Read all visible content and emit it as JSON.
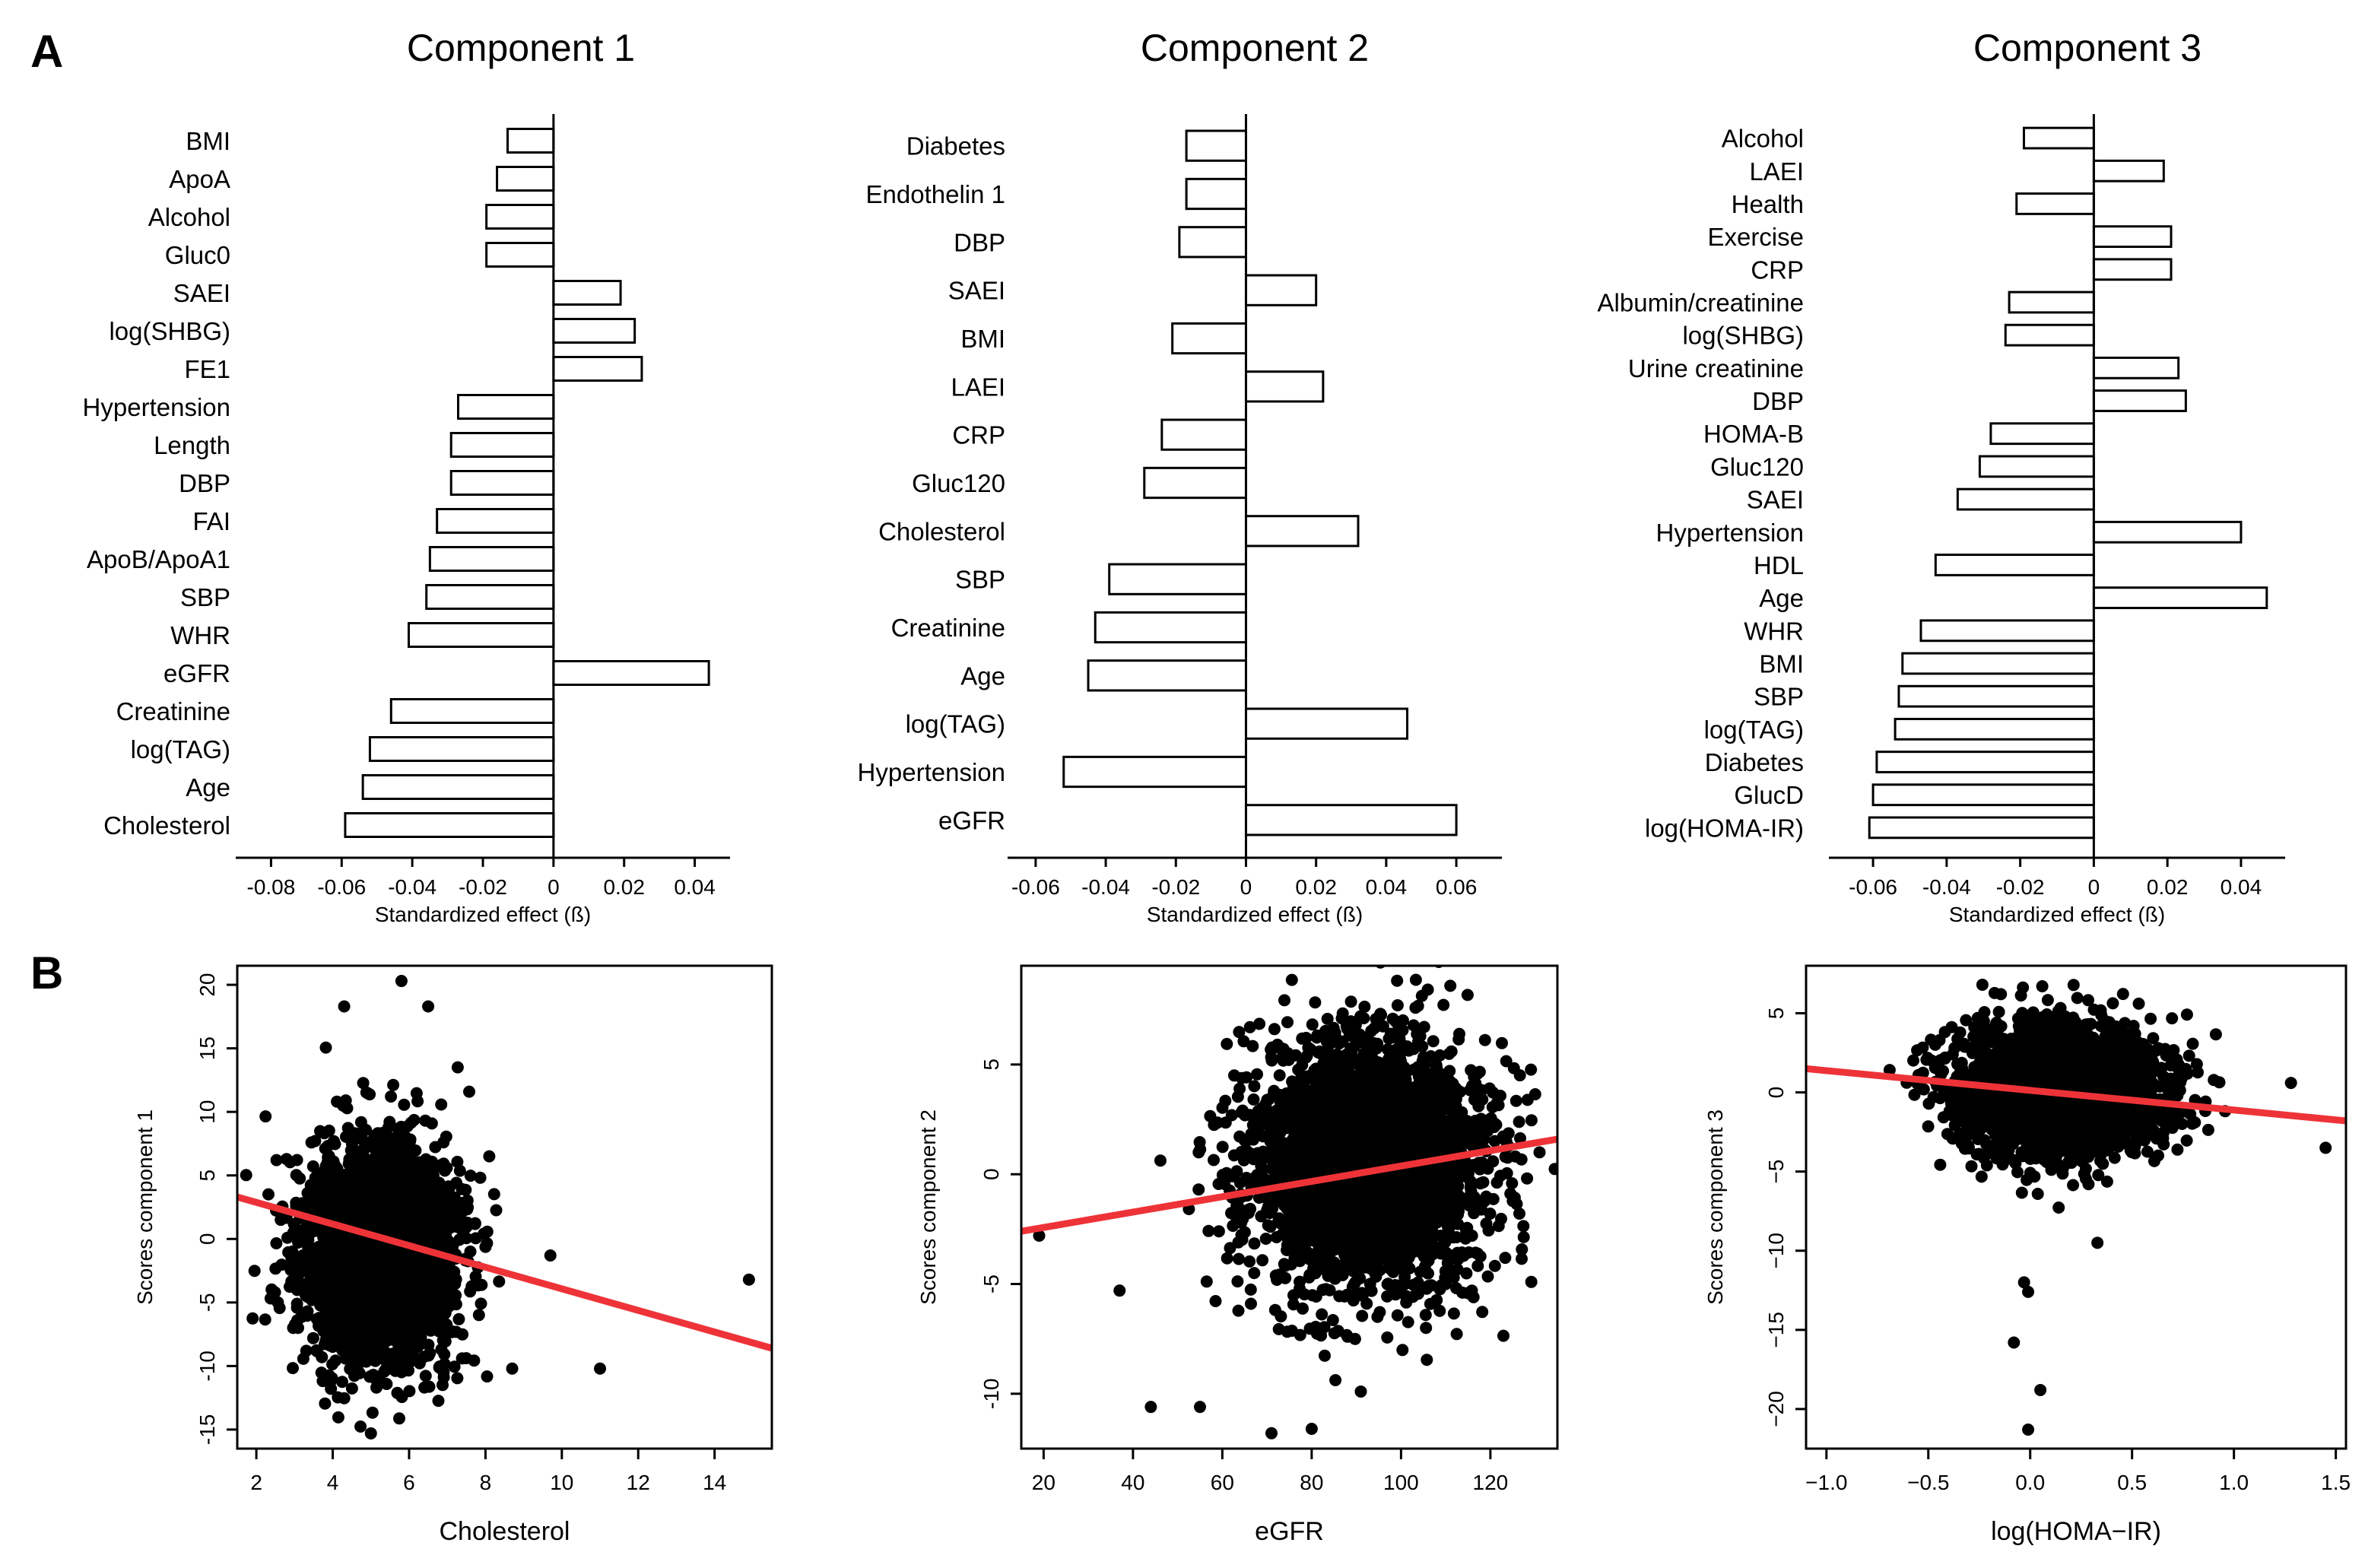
{
  "panels": {
    "a": "A",
    "b": "B"
  },
  "colors": {
    "bar_fill": "#ffffff",
    "bar_stroke": "#000000",
    "points": "#000000",
    "fit_line": "#ee3338"
  },
  "chart_data": [
    {
      "type": "bar",
      "orientation": "horizontal",
      "title": "Component 1",
      "xlabel": "Standardized effect (ß)",
      "xlim": [
        -0.09,
        0.05
      ],
      "xticks": [
        -0.08,
        -0.06,
        -0.04,
        -0.02,
        0,
        0.02,
        0.04
      ],
      "tick_labels": [
        "-0.08",
        "-0.06",
        "-0.04",
        "-0.02",
        "0",
        "0.02",
        "0.04"
      ],
      "categories": [
        "BMI",
        "ApoA",
        "Alcohol",
        "Gluc0",
        "SAEI",
        "log(SHBG)",
        "FE1",
        "Hypertension",
        "Length",
        "DBP",
        "FAI",
        "ApoB/ApoA1",
        "SBP",
        "WHR",
        "eGFR",
        "Creatinine",
        "log(TAG)",
        "Age",
        "Cholesterol"
      ],
      "values": [
        -0.013,
        -0.016,
        -0.019,
        -0.019,
        0.019,
        0.023,
        0.025,
        -0.027,
        -0.029,
        -0.029,
        -0.033,
        -0.035,
        -0.036,
        -0.041,
        0.044,
        -0.046,
        -0.052,
        -0.054,
        -0.059
      ]
    },
    {
      "type": "bar",
      "orientation": "horizontal",
      "title": "Component 2",
      "xlabel": "Standardized effect (ß)",
      "xlim": [
        -0.068,
        0.073
      ],
      "xticks": [
        -0.06,
        -0.04,
        -0.02,
        0,
        0.02,
        0.04,
        0.06
      ],
      "tick_labels": [
        "-0.06",
        "-0.04",
        "-0.02",
        "0",
        "0.02",
        "0.04",
        "0.06"
      ],
      "categories": [
        "Diabetes",
        "Endothelin 1",
        "DBP",
        "SAEI",
        "BMI",
        "LAEI",
        "CRP",
        "Gluc120",
        "Cholesterol",
        "SBP",
        "Creatinine",
        "Age",
        "log(TAG)",
        "Hypertension",
        "eGFR"
      ],
      "values": [
        -0.017,
        -0.017,
        -0.019,
        0.02,
        -0.021,
        0.022,
        -0.024,
        -0.029,
        0.032,
        -0.039,
        -0.043,
        -0.045,
        0.046,
        -0.052,
        0.06
      ]
    },
    {
      "type": "bar",
      "orientation": "horizontal",
      "title": "Component 3",
      "xlabel": "Standardized effect (ß)",
      "xlim": [
        -0.072,
        0.052
      ],
      "xticks": [
        -0.06,
        -0.04,
        -0.02,
        0,
        0.02,
        0.04
      ],
      "tick_labels": [
        "-0.06",
        "-0.04",
        "-0.02",
        "0",
        "0.02",
        "0.04"
      ],
      "categories": [
        "Alcohol",
        "LAEI",
        "Health",
        "Exercise",
        "CRP",
        "Albumin/creatinine",
        "log(SHBG)",
        "Urine creatinine",
        "DBP",
        "HOMA-B",
        "Gluc120",
        "SAEI",
        "Hypertension",
        "HDL",
        "Age",
        "WHR",
        "BMI",
        "SBP",
        "log(TAG)",
        "Diabetes",
        "GlucD",
        "log(HOMA-IR)"
      ],
      "values": [
        -0.019,
        0.019,
        -0.021,
        0.021,
        0.021,
        -0.023,
        -0.024,
        0.023,
        0.025,
        -0.028,
        -0.031,
        -0.037,
        0.04,
        -0.043,
        0.047,
        -0.047,
        -0.052,
        -0.053,
        -0.054,
        -0.059,
        -0.06,
        -0.061
      ]
    },
    {
      "type": "scatter",
      "xlabel": "Cholesterol",
      "ylabel": "Scores component 1",
      "xlim": [
        1.5,
        15.5
      ],
      "ylim": [
        -16.5,
        21.5
      ],
      "xticks": [
        2,
        4,
        6,
        8,
        10,
        12,
        14
      ],
      "yticks": [
        -15,
        -10,
        -5,
        0,
        5,
        10,
        15,
        20
      ],
      "cluster": {
        "x_center": 5.2,
        "x_sd": 1.0,
        "y_center": -1.0,
        "y_sd": 4.2,
        "n": 3000
      },
      "outliers": [
        [
          5.8,
          20.3
        ],
        [
          4.3,
          18.3
        ],
        [
          6.5,
          18.3
        ],
        [
          11.0,
          -10.2
        ],
        [
          14.9,
          -3.2
        ],
        [
          5.0,
          -15.3
        ],
        [
          9.7,
          -1.3
        ],
        [
          8.7,
          -10.2
        ]
      ],
      "fit_line": {
        "x": [
          1.5,
          15.5
        ],
        "y": [
          3.3,
          -8.6
        ]
      }
    },
    {
      "type": "scatter",
      "xlabel": "eGFR",
      "ylabel": "Scores component 2",
      "xlim": [
        15,
        135
      ],
      "ylim": [
        -12.5,
        9.5
      ],
      "xticks": [
        20,
        40,
        60,
        80,
        100,
        120
      ],
      "yticks": [
        -10,
        -5,
        0,
        5
      ],
      "cluster": {
        "x_center": 92,
        "x_sd": 13,
        "y_center": 0.5,
        "y_sd": 2.8,
        "n": 3000
      },
      "outliers": [
        [
          19,
          -2.8
        ],
        [
          44,
          -10.6
        ],
        [
          55,
          -10.6
        ],
        [
          71,
          -11.8
        ],
        [
          80,
          -11.6
        ],
        [
          37,
          -5.3
        ],
        [
          91,
          -9.9
        ],
        [
          131,
          1.0
        ]
      ],
      "fit_line": {
        "x": [
          15,
          135
        ],
        "y": [
          -2.6,
          1.6
        ]
      }
    },
    {
      "type": "scatter",
      "xlabel": "log(HOMA−IR)",
      "ylabel": "Scores component 3",
      "xlim": [
        -1.1,
        1.55
      ],
      "ylim": [
        -22.5,
        8.0
      ],
      "xticks": [
        -1.0,
        -0.5,
        0.0,
        0.5,
        1.0,
        1.5
      ],
      "tick_labels": [
        "−1.0",
        "−0.5",
        "0.0",
        "0.5",
        "1.0",
        "1.5"
      ],
      "yticks": [
        -20,
        -15,
        -10,
        -5,
        0,
        5
      ],
      "y_tick_labels": [
        "−20",
        "−15",
        "−10",
        "−5",
        "0",
        "5"
      ],
      "cluster": {
        "x_center": 0.15,
        "x_sd": 0.25,
        "y_center": 0.0,
        "y_sd": 2.0,
        "n": 3000
      },
      "outliers": [
        [
          -0.03,
          -12.0
        ],
        [
          -0.01,
          -12.6
        ],
        [
          -0.08,
          -15.8
        ],
        [
          0.05,
          -18.8
        ],
        [
          -0.01,
          -21.3
        ],
        [
          0.33,
          -9.5
        ],
        [
          1.45,
          -3.5
        ],
        [
          1.28,
          0.6
        ]
      ],
      "fit_line": {
        "x": [
          -1.1,
          1.55
        ],
        "y": [
          1.5,
          -1.8
        ]
      }
    }
  ]
}
